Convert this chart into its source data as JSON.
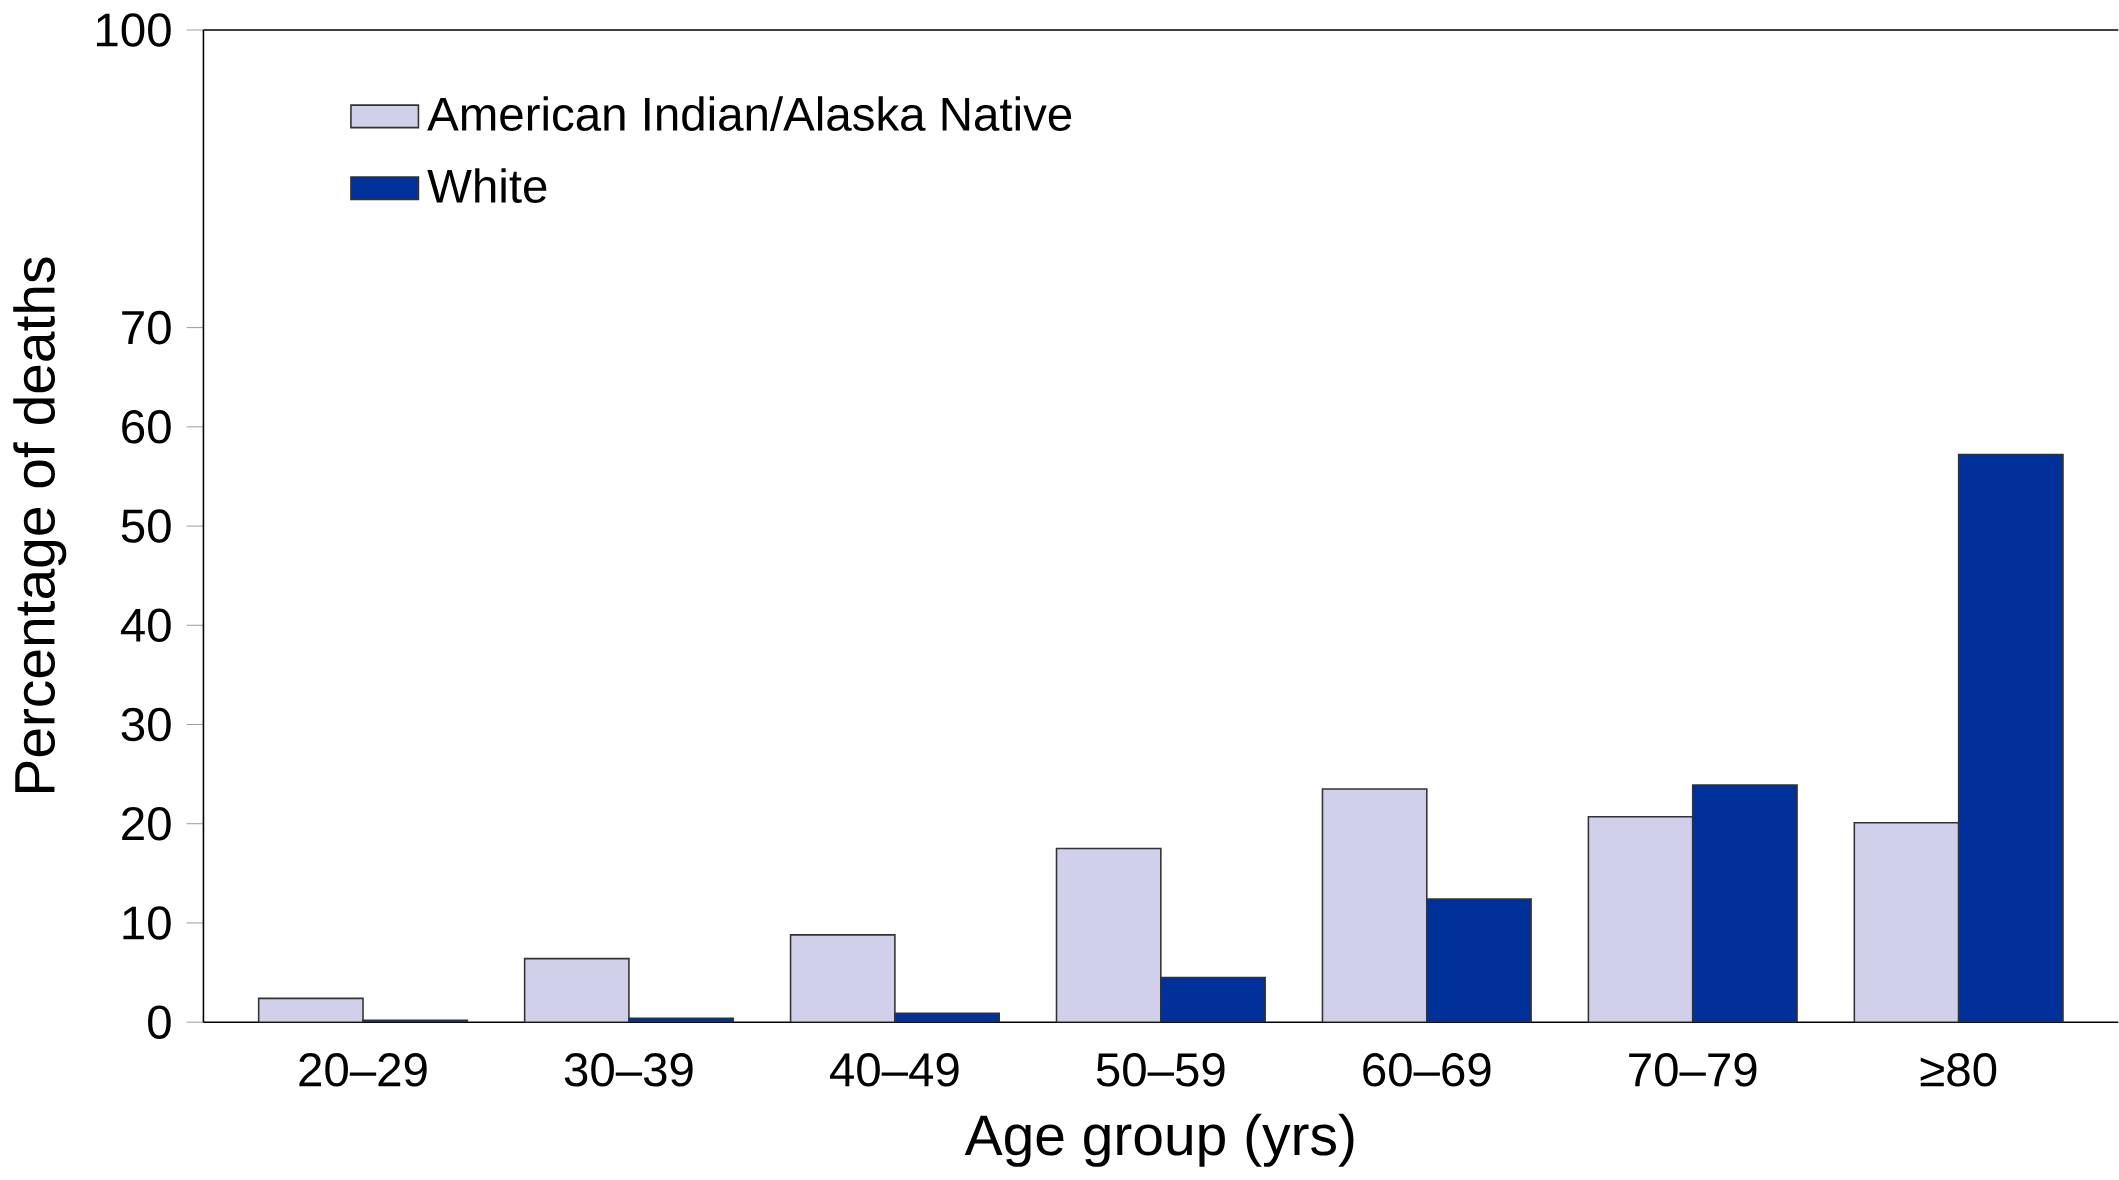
{
  "chart_data": {
    "type": "bar",
    "xlabel": "Age group (yrs)",
    "ylabel": "Percentage of deaths",
    "categories": [
      "20–29",
      "30–39",
      "40–49",
      "50–59",
      "60–69",
      "70–79",
      "≥80"
    ],
    "series": [
      {
        "name": "American Indian/Alaska Native",
        "color": "#d0d0eb",
        "values": [
          2.4,
          6.4,
          8.8,
          17.5,
          23.5,
          20.7,
          20.1
        ]
      },
      {
        "name": "White",
        "color": "#00309a",
        "values": [
          0.2,
          0.4,
          0.9,
          4.5,
          12.4,
          23.9,
          57.2
        ]
      }
    ],
    "ylim": [
      0,
      100
    ],
    "yticks": [
      0,
      10,
      20,
      30,
      40,
      50,
      60,
      70,
      100
    ],
    "legend": "top left"
  }
}
